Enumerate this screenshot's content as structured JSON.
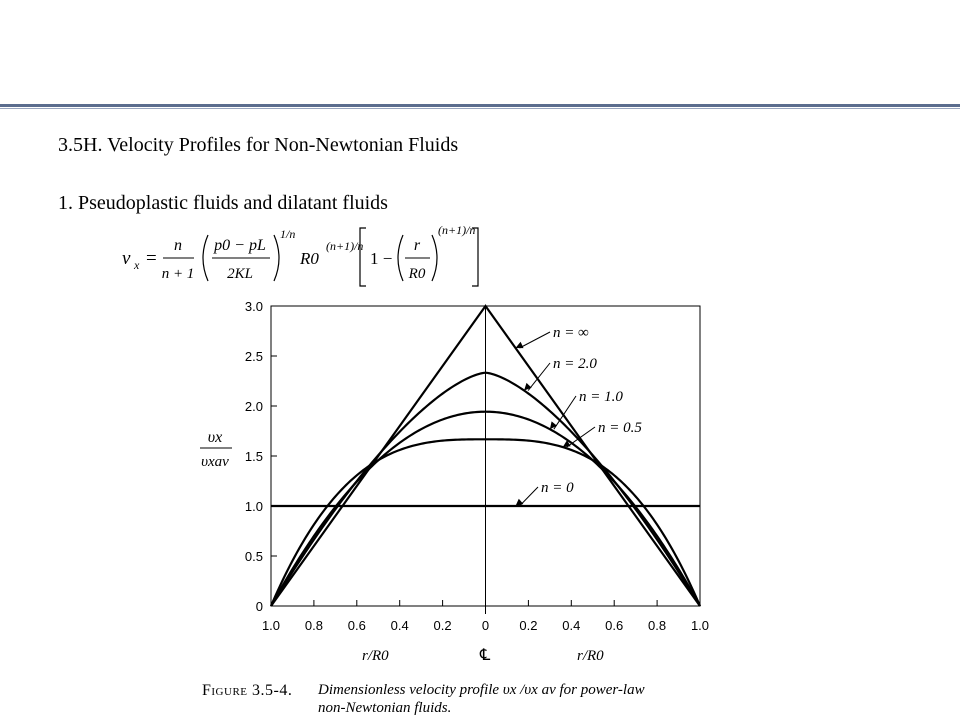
{
  "slide": {
    "section_heading": "3.5H. Velocity Profiles for Non-Newtonian Fluids",
    "subheading": "1. Pseudoplastic fluids and dilatant fluids",
    "caption_label": "Figure 3.5-4.",
    "caption_line1": "Dimensionless velocity profile υx /υx av for power-law",
    "caption_line2": "non-Newtonian fluids.",
    "colors": {
      "accent_rule": "#5b6d8e"
    }
  },
  "formula": {
    "lhs": "v",
    "lhs_sub": "x",
    "eq": "=",
    "frac1_num": "n",
    "frac1_den": "n + 1",
    "frac2_num": "p0 − pL",
    "frac2_den": "2KL",
    "exp1": "1/n",
    "r0": "R0",
    "exp2": "(n+1)/n",
    "one_minus": "1 −",
    "frac3_num": "r",
    "frac3_den": "R0",
    "exp3": "(n+1)/n"
  },
  "chart_data": {
    "type": "line",
    "xlabel_left": "r/R0",
    "xlabel_right": "r/R0",
    "centerline_label": "℄",
    "ylabel_num": "υx",
    "ylabel_den": "υxav",
    "x_tick_labels": [
      "1.0",
      "0.8",
      "0.6",
      "0.4",
      "0.2",
      "0",
      "0.2",
      "0.4",
      "0.6",
      "0.8",
      "1.0"
    ],
    "x_tick_values": [
      -1.0,
      -0.8,
      -0.6,
      -0.4,
      -0.2,
      0,
      0.2,
      0.4,
      0.6,
      0.8,
      1.0
    ],
    "y_tick_labels": [
      "0",
      "0.5",
      "1.0",
      "1.5",
      "2.0",
      "2.5",
      "3.0"
    ],
    "y_tick_values": [
      0,
      0.5,
      1.0,
      1.5,
      2.0,
      2.5,
      3.0
    ],
    "xlim": [
      -1,
      1
    ],
    "ylim": [
      0,
      3
    ],
    "grid": false,
    "series": [
      {
        "name": "n = ∞",
        "n": "inf",
        "peak": 3.0
      },
      {
        "name": "n = 2.0",
        "n": 2.0,
        "peak": 2.333
      },
      {
        "name": "n = 1.0",
        "n": 1.0,
        "peak": 1.943
      },
      {
        "name": "n = 0.5",
        "n": 0.5,
        "peak": 1.667
      },
      {
        "name": "n = 0",
        "n": 0,
        "peak": 1.0
      }
    ]
  }
}
